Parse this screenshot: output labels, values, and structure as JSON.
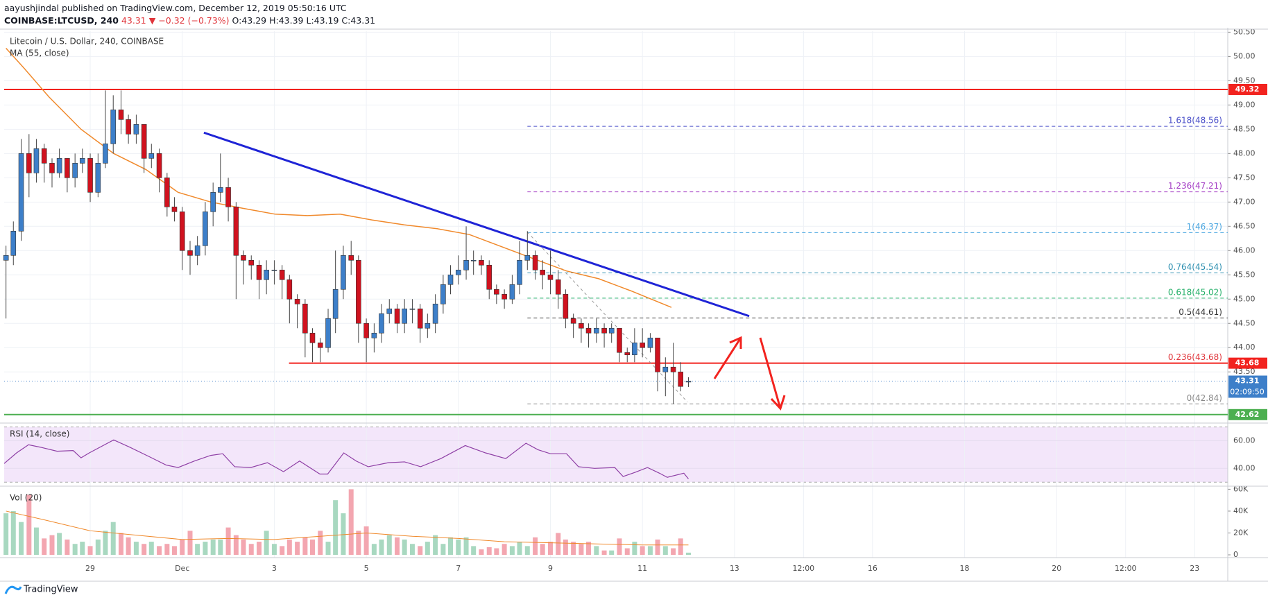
{
  "chart_data": {
    "type": "candlestick",
    "header_line1": "aayushjindal published on TradingView.com, December 12, 2019 05:50:16 UTC",
    "header_symbol": "COINBASE:LTCUSD, 240",
    "header_change": "43.31 ▼ −0.32 (−0.73%)",
    "header_ohlc": "O:43.29 H:43.39 L:43.19 C:43.31",
    "title": "Litecoin / U.S. Dollar, 240, COINBASE",
    "ma_label": "MA (55, close)",
    "rsi_label": "RSI (14, close)",
    "vol_label": "Vol (20)",
    "footer": "TradingView",
    "up_color": "#3d7fc9",
    "down_color": "#d0121f",
    "ma_color": "#f0892b",
    "xlim": [
      -2.87,
      23.72
    ],
    "xticks": [
      {
        "value": -1,
        "label": "29"
      },
      {
        "value": 1,
        "label": "Dec"
      },
      3,
      5,
      7,
      9,
      11,
      13,
      {
        "value": 14.5,
        "label": "12:00"
      },
      16,
      18,
      20,
      {
        "value": 21.5,
        "label": "12:00"
      },
      23
    ],
    "ylim": [
      42.46,
      50.52
    ],
    "yticks": [
      {
        "value": 43.5,
        "label": "43.50"
      },
      {
        "value": 44,
        "label": "44.00"
      },
      {
        "value": 44.5,
        "label": "44.50"
      },
      {
        "value": 45,
        "label": "45.00"
      },
      {
        "value": 45.5,
        "label": "45.50"
      },
      {
        "value": 46,
        "label": "46.00"
      },
      {
        "value": 46.5,
        "label": "46.50"
      },
      {
        "value": 47,
        "label": "47.00"
      },
      {
        "value": 47.5,
        "label": "47.50"
      },
      {
        "value": 48,
        "label": "48.00"
      },
      {
        "value": 48.5,
        "label": "48.50"
      },
      {
        "value": 49,
        "label": "49.00"
      },
      {
        "value": 49.5,
        "label": "49.50"
      },
      {
        "value": 50,
        "label": "50.00"
      },
      {
        "value": 50.5,
        "label": "50.50"
      }
    ],
    "grid": true,
    "candles": {
      "x": [
        -2.83,
        -2.67,
        -2.5,
        -2.33,
        -2.17,
        -2,
        -1.83,
        -1.67,
        -1.5,
        -1.33,
        -1.17,
        -1,
        -0.83,
        -0.67,
        -0.5,
        -0.33,
        -0.17,
        0,
        0.17,
        0.33,
        0.5,
        0.67,
        0.83,
        1,
        1.17,
        1.33,
        1.5,
        1.67,
        1.83,
        2,
        2.17,
        2.33,
        2.5,
        2.67,
        2.83,
        3,
        3.17,
        3.33,
        3.5,
        3.67,
        3.83,
        4,
        4.17,
        4.33,
        4.5,
        4.67,
        4.83,
        5,
        5.17,
        5.33,
        5.5,
        5.67,
        5.83,
        6,
        6.17,
        6.33,
        6.5,
        6.67,
        6.83,
        7,
        7.17,
        7.33,
        7.5,
        7.67,
        7.83,
        8,
        8.17,
        8.33,
        8.5,
        8.67,
        8.83,
        9,
        9.17,
        9.33,
        9.5,
        9.67,
        9.83,
        10,
        10.17,
        10.33,
        10.5,
        10.67,
        10.83,
        11,
        11.17,
        11.33,
        11.5,
        11.67,
        11.83,
        12
      ],
      "open": [
        45.8,
        45.9,
        46.4,
        48.0,
        47.6,
        48.1,
        47.8,
        47.6,
        47.9,
        47.5,
        47.8,
        47.9,
        47.2,
        47.8,
        48.2,
        48.9,
        48.7,
        48.4,
        48.6,
        47.9,
        48.0,
        47.5,
        46.9,
        46.8,
        46.0,
        45.9,
        46.1,
        46.8,
        47.2,
        47.3,
        46.9,
        45.9,
        45.8,
        45.7,
        45.4,
        45.6,
        45.6,
        45.4,
        45.0,
        44.9,
        44.3,
        44.1,
        44.0,
        44.6,
        45.2,
        45.9,
        45.8,
        44.5,
        44.2,
        44.3,
        44.7,
        44.8,
        44.5,
        44.8,
        44.8,
        44.4,
        44.5,
        44.9,
        45.3,
        45.5,
        45.6,
        45.8,
        45.8,
        45.7,
        45.2,
        45.1,
        45.0,
        45.3,
        45.8,
        45.9,
        45.6,
        45.5,
        45.4,
        45.1,
        44.6,
        44.5,
        44.4,
        44.3,
        44.4,
        44.3,
        44.4,
        43.9,
        43.85,
        44.1,
        44.0,
        44.2,
        43.5,
        43.6,
        43.5,
        43.29
      ],
      "high": [
        46.1,
        46.6,
        48.3,
        48.4,
        48.3,
        48.2,
        47.9,
        48.1,
        47.9,
        48.0,
        48.1,
        48.0,
        48.0,
        49.3,
        49.2,
        49.3,
        48.8,
        48.8,
        48.6,
        48.2,
        48.1,
        47.6,
        47.1,
        46.9,
        46.2,
        46.3,
        47.0,
        47.4,
        48.0,
        47.5,
        47.0,
        46.0,
        45.9,
        45.8,
        45.8,
        45.8,
        45.7,
        45.5,
        45.1,
        45.0,
        44.4,
        44.2,
        44.8,
        46.0,
        46.1,
        46.2,
        45.9,
        44.6,
        44.5,
        44.9,
        45.0,
        44.9,
        45.0,
        45.0,
        44.9,
        44.7,
        45.1,
        45.5,
        45.7,
        45.9,
        46.5,
        46.0,
        45.9,
        45.8,
        45.3,
        45.2,
        45.5,
        46.2,
        46.4,
        46.0,
        45.8,
        46.0,
        45.6,
        45.2,
        44.7,
        44.6,
        44.5,
        44.6,
        44.5,
        44.5,
        44.4,
        44.0,
        44.4,
        44.4,
        44.3,
        44.2,
        43.8,
        44.1,
        43.7,
        43.39
      ],
      "low": [
        44.6,
        45.7,
        46.2,
        47.1,
        47.4,
        47.4,
        47.3,
        47.5,
        47.2,
        47.3,
        47.6,
        47.0,
        47.1,
        47.7,
        48.0,
        48.4,
        48.2,
        48.2,
        47.6,
        47.7,
        47.2,
        46.7,
        46.6,
        45.6,
        45.5,
        45.7,
        45.9,
        46.5,
        47.0,
        46.6,
        45.0,
        45.3,
        45.4,
        45.0,
        45.1,
        45.3,
        45.0,
        44.5,
        44.4,
        43.8,
        43.7,
        43.7,
        43.9,
        44.3,
        45.0,
        45.5,
        44.1,
        43.7,
        43.9,
        44.1,
        44.5,
        44.3,
        44.3,
        44.5,
        44.1,
        44.2,
        44.3,
        44.7,
        45.1,
        45.3,
        45.4,
        45.5,
        45.5,
        45.0,
        44.9,
        44.8,
        44.9,
        45.1,
        45.6,
        45.4,
        45.2,
        45.1,
        44.8,
        44.4,
        44.2,
        44.1,
        44.0,
        44.1,
        44.0,
        44.1,
        43.7,
        43.7,
        43.7,
        43.8,
        43.9,
        43.1,
        43.0,
        42.84,
        43.1,
        43.19
      ],
      "close": [
        45.9,
        46.4,
        48.0,
        47.6,
        48.1,
        47.8,
        47.6,
        47.9,
        47.5,
        47.8,
        47.9,
        47.2,
        47.8,
        48.2,
        48.9,
        48.7,
        48.4,
        48.6,
        47.9,
        48.0,
        47.5,
        46.9,
        46.8,
        46.0,
        45.9,
        46.1,
        46.8,
        47.2,
        47.3,
        46.9,
        45.9,
        45.8,
        45.7,
        45.4,
        45.6,
        45.6,
        45.4,
        45.0,
        44.9,
        44.3,
        44.1,
        44.0,
        44.6,
        45.2,
        45.9,
        45.8,
        44.5,
        44.2,
        44.3,
        44.7,
        44.8,
        44.5,
        44.8,
        44.8,
        44.4,
        44.5,
        44.9,
        45.3,
        45.5,
        45.6,
        45.8,
        45.8,
        45.7,
        45.2,
        45.1,
        45.0,
        45.3,
        45.8,
        45.9,
        45.6,
        45.5,
        45.4,
        45.1,
        44.6,
        44.5,
        44.4,
        44.3,
        44.4,
        44.3,
        44.4,
        43.9,
        43.85,
        44.1,
        44.0,
        44.2,
        43.5,
        43.6,
        43.5,
        43.2,
        43.31
      ]
    },
    "ma": {
      "x": [
        -2.83,
        -2.43,
        -1.9,
        -1.2,
        -0.49,
        0.21,
        0.91,
        1.62,
        2.32,
        3.02,
        3.72,
        4.43,
        5.13,
        5.83,
        6.54,
        7.24,
        7.94,
        8.64,
        9.35,
        10.05,
        10.75,
        11.63
      ],
      "values": [
        50.17,
        49.75,
        49.17,
        48.5,
        48.0,
        47.67,
        47.2,
        47.0,
        46.87,
        46.75,
        46.72,
        46.75,
        46.63,
        46.53,
        46.45,
        46.33,
        46.08,
        45.83,
        45.58,
        45.42,
        45.17,
        44.83
      ]
    },
    "trendline": {
      "color": "#1f24d6",
      "x": [
        1.47,
        13.32
      ],
      "values": [
        48.43,
        44.65
      ]
    },
    "diagonal": {
      "color": "#999999",
      "x": [
        8.5,
        11.98
      ],
      "values": [
        46.38,
        42.88
      ]
    },
    "hlines": [
      {
        "value": 49.32,
        "color": "#f2231f",
        "x_start": -2.87
      },
      {
        "value": 43.68,
        "color": "#f2231f",
        "x_start": 3.32
      },
      {
        "value": 42.62,
        "color": "#4caf50",
        "x_start": -2.87
      }
    ],
    "last_price": {
      "value": 43.31,
      "color": "#3d7fc9",
      "countdown": "02:09:50"
    },
    "fib_x_start": 8.5,
    "fib": [
      {
        "label": "1.618(48.56)",
        "value": 48.56,
        "color": "#4a4fc9"
      },
      {
        "label": "1.236(47.21)",
        "value": 47.21,
        "color": "#a23ac4"
      },
      {
        "label": "1(46.37)",
        "value": 46.37,
        "color": "#4aa6e0"
      },
      {
        "label": "0.764(45.54)",
        "value": 45.54,
        "color": "#2c8fb0"
      },
      {
        "label": "0.618(45.02)",
        "value": 45.02,
        "color": "#26b06a"
      },
      {
        "label": "0.5(44.61)",
        "value": 44.61,
        "color": "#333333"
      },
      {
        "label": "0.236(43.68)",
        "value": 43.68,
        "color": "#e0353b"
      },
      {
        "label": "0(42.84)",
        "value": 42.84,
        "color": "#888888"
      }
    ],
    "rsi": {
      "color": "#8e3fa5",
      "ylim": [
        27.6,
        71.8
      ],
      "yticks": [
        {
          "value": 40,
          "label": "40.00"
        },
        {
          "value": 60,
          "label": "60.00"
        }
      ],
      "band": [
        30,
        70
      ],
      "x": [
        -2.87,
        -2.6,
        -2.34,
        -2.08,
        -1.72,
        -1.37,
        -1.2,
        -1.02,
        -0.49,
        -0.14,
        0.3,
        0.65,
        0.91,
        1.26,
        1.62,
        1.88,
        2.14,
        2.49,
        2.85,
        3.2,
        3.55,
        3.99,
        4.16,
        4.51,
        4.78,
        5.04,
        5.48,
        5.83,
        6.18,
        6.62,
        7.15,
        7.59,
        8.03,
        8.47,
        8.73,
        9.0,
        9.35,
        9.61,
        9.96,
        10.4,
        10.58,
        10.84,
        11.11,
        11.37,
        11.54,
        11.9,
        12.0
      ],
      "values": [
        43.5,
        51.2,
        57.1,
        55.3,
        52.4,
        52.9,
        47.6,
        51.2,
        60.6,
        55.3,
        48.2,
        42.4,
        40.6,
        45.3,
        49.4,
        50.6,
        41.2,
        40.6,
        44.1,
        37.6,
        45.3,
        35.9,
        35.9,
        51.2,
        45.3,
        41.2,
        44.1,
        44.7,
        41.2,
        47.1,
        56.5,
        51.2,
        47.1,
        58.2,
        53.5,
        50.6,
        50.6,
        41.2,
        40,
        40.6,
        34.1,
        37.1,
        40.6,
        36.5,
        33.5,
        36.5,
        32.4
      ]
    },
    "volume": {
      "up_color": "#a8d8c0",
      "down_color": "#f3a6b0",
      "ylim": [
        -2540,
        62160
      ],
      "yticks": [
        0,
        {
          "value": 20000,
          "label": "20K"
        },
        {
          "value": 40000,
          "label": "40K"
        },
        {
          "value": 60000,
          "label": "60K"
        }
      ],
      "values": [
        38000,
        40000,
        30000,
        55000,
        25000,
        15000,
        18000,
        20000,
        14000,
        10000,
        12000,
        8000,
        14000,
        22000,
        30000,
        20000,
        16000,
        12000,
        10000,
        12000,
        8000,
        10000,
        8000,
        14000,
        22000,
        10000,
        12000,
        14000,
        14000,
        25000,
        18000,
        14000,
        10000,
        12000,
        22000,
        10000,
        8000,
        14000,
        12000,
        16000,
        14000,
        22000,
        12000,
        50000,
        38000,
        60000,
        22000,
        26000,
        10000,
        14000,
        18000,
        16000,
        14000,
        10000,
        8000,
        12000,
        18000,
        10000,
        16000,
        14000,
        16000,
        8000,
        5000,
        7000,
        6000,
        10000,
        8000,
        12000,
        8000,
        16000,
        10000,
        12000,
        20000,
        14000,
        12000,
        10000,
        12000,
        8000,
        4000,
        4000,
        15000,
        6000,
        12000,
        8000,
        8000,
        14000,
        8000,
        6000,
        15000,
        2000
      ],
      "ma_color": "#f0892b",
      "ma_x": [
        -2.83,
        -2,
        -1,
        0,
        1,
        2,
        3,
        4,
        5,
        6,
        7,
        8,
        9,
        10,
        11,
        12
      ],
      "ma_values": [
        40000,
        32000,
        22000,
        18000,
        14000,
        15000,
        14000,
        17000,
        20000,
        17000,
        15000,
        12000,
        11000,
        10000,
        9000,
        9000
      ]
    }
  }
}
